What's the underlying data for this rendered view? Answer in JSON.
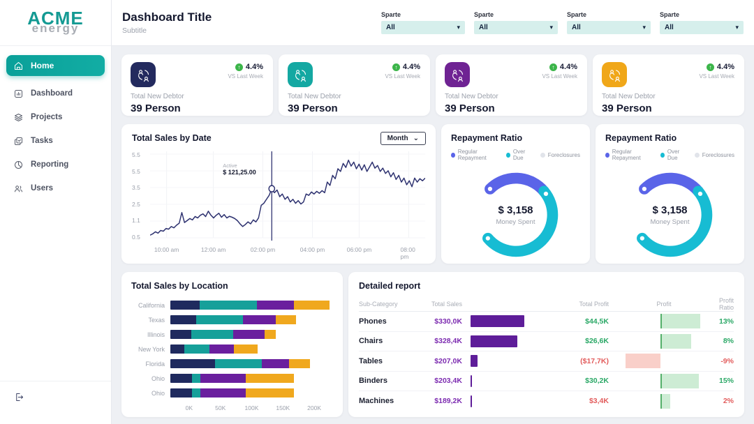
{
  "brand": {
    "primary": "ACME",
    "secondary": "energy"
  },
  "sidebar": {
    "items": [
      {
        "label": "Home",
        "active": true
      },
      {
        "label": "Dashboard",
        "active": false
      },
      {
        "label": "Projects",
        "active": false
      },
      {
        "label": "Tasks",
        "active": false
      },
      {
        "label": "Reporting",
        "active": false
      },
      {
        "label": "Users",
        "active": false
      }
    ]
  },
  "header": {
    "title": "Dashboard Title",
    "subtitle": "Subtitle",
    "filters": [
      {
        "label": "Sparte",
        "value": "All"
      },
      {
        "label": "Sparte",
        "value": "All"
      },
      {
        "label": "Sparte",
        "value": "All"
      },
      {
        "label": "Sparte",
        "value": "All"
      }
    ]
  },
  "kpi_cards": [
    {
      "icon_color": "#232a5e",
      "delta": "4.4%",
      "delta_note": "VS Last Week",
      "label": "Total New Debtor",
      "value": "39 Person"
    },
    {
      "icon_color": "#14a8a2",
      "delta": "4.4%",
      "delta_note": "VS Last Week",
      "label": "Total New Debtor",
      "value": "39 Person"
    },
    {
      "icon_color": "#6f2393",
      "delta": "4.4%",
      "delta_note": "VS Last Week",
      "label": "Total New Debtor",
      "value": "39 Person"
    },
    {
      "icon_color": "#f0a719",
      "delta": "4.4%",
      "delta_note": "VS Last Week",
      "label": "Total New Debtor",
      "value": "39 Person"
    }
  ],
  "chart_data": [
    {
      "type": "line",
      "title": "Total Sales by Date",
      "period_selector": "Month",
      "line_color": "#2e3270",
      "y_ticks": [
        "5.5",
        "5.5",
        "3.5",
        "2.5",
        "1.1",
        "0.5"
      ],
      "x_ticks": [
        "10:00 am",
        "12:00 am",
        "02:00 pm",
        "04:00 pm",
        "06:00 pm",
        "08:00 pm"
      ],
      "x_tick_pcts": [
        6,
        23,
        41,
        59,
        76,
        94
      ],
      "ylim": [
        0,
        6.2
      ],
      "points": [
        0.2,
        0.3,
        0.45,
        0.35,
        0.55,
        0.5,
        0.7,
        0.65,
        0.85,
        0.75,
        0.95,
        1.1,
        1.9,
        1.15,
        1.3,
        1.45,
        1.35,
        1.6,
        1.5,
        1.7,
        1.8,
        1.6,
        2.0,
        1.7,
        1.5,
        1.7,
        1.85,
        1.55,
        1.75,
        1.5,
        1.62,
        1.55,
        1.45,
        1.3,
        1.05,
        0.85,
        1.0,
        1.2,
        1.05,
        1.35,
        1.2,
        1.5,
        2.45,
        2.6,
        2.9,
        3.2,
        3.7,
        3.4,
        3.6,
        3.1,
        3.3,
        2.9,
        3.1,
        2.7,
        2.9,
        2.6,
        2.8,
        2.55,
        2.7,
        3.3,
        3.2,
        3.45,
        3.3,
        3.5,
        3.35,
        3.55,
        3.4,
        4.2,
        3.95,
        4.7,
        4.45,
        5.2,
        5.0,
        5.6,
        5.3,
        5.85,
        5.4,
        5.7,
        5.2,
        5.55,
        5.1,
        5.5,
        5.0,
        5.35,
        5.7,
        5.25,
        5.45,
        5.0,
        5.25,
        4.85,
        5.05,
        4.6,
        4.9,
        4.4,
        4.7,
        4.2,
        4.5,
        4.0,
        4.3,
        3.85,
        4.5,
        4.2,
        4.45,
        4.3,
        4.5
      ],
      "cursor": {
        "index": 46,
        "label": "Active",
        "value": "$ 121,25.00"
      }
    },
    {
      "type": "pie",
      "title": "Repayment Ratio",
      "legend": [
        {
          "label": "Regular Repayment",
          "color": "#5a64e8"
        },
        {
          "label": "Over Due",
          "color": "#17bcd3"
        },
        {
          "label": "Foreclosures",
          "color": "#e1e4ea"
        }
      ],
      "slices": [
        {
          "label": "Regular Repayment",
          "pct": 26
        },
        {
          "label": "Over Due",
          "pct": 50
        },
        {
          "label": "Foreclosures",
          "pct": 24
        }
      ],
      "arcs": [
        {
          "color": "#5a64e8",
          "start": 315,
          "sweep": 95
        },
        {
          "color": "#17bcd3",
          "start": 50,
          "sweep": 180
        }
      ],
      "dot_angles": [
        315,
        55,
        230
      ],
      "center_value": "$ 3,158",
      "center_label": "Money Spent"
    },
    {
      "type": "bar",
      "orientation": "horizontal",
      "stacked": true,
      "title": "Total Sales by Location",
      "categories": [
        "California",
        "Texas",
        "Illinois",
        "New York",
        "Florida",
        "Ohio",
        "Ohio"
      ],
      "series": [
        {
          "name": "segment-navy",
          "color": "#1f2a5e",
          "values": [
            47,
            41,
            33,
            22,
            71,
            35,
            35
          ]
        },
        {
          "name": "segment-teal",
          "color": "#16a09a",
          "values": [
            91,
            75,
            68,
            40,
            75,
            13,
            13
          ]
        },
        {
          "name": "segment-purple",
          "color": "#6a1f9e",
          "values": [
            59,
            52,
            50,
            40,
            44,
            73,
            73
          ]
        },
        {
          "name": "segment-amber",
          "color": "#f0a81e",
          "values": [
            58,
            33,
            18,
            38,
            33,
            77,
            77
          ]
        }
      ],
      "x_ticks": [
        {
          "label": "0K",
          "value": 0
        },
        {
          "label": "50K",
          "value": 50
        },
        {
          "label": "100K",
          "value": 100
        },
        {
          "label": "150K",
          "value": 150
        },
        {
          "label": "200K",
          "value": 200
        }
      ],
      "xlim": [
        -30,
        230
      ]
    },
    {
      "type": "table",
      "title": "Detailed report",
      "columns": [
        "Sub-Category",
        "Total Sales",
        "Total Profit",
        "Profit",
        "Profit Ratio"
      ],
      "rows": [
        {
          "name": "Phones",
          "total_sales": "$330,0K",
          "sales_bar_pct": 88,
          "total_profit": "$44,5K",
          "profit_negative": false,
          "profit_bar_pct": 45,
          "profit_ratio": "13%",
          "ratio_negative": false
        },
        {
          "name": "Chairs",
          "total_sales": "$328,4K",
          "sales_bar_pct": 76,
          "total_profit": "$26,6K",
          "profit_negative": false,
          "profit_bar_pct": 35,
          "profit_ratio": "8%",
          "ratio_negative": false
        },
        {
          "name": "Tables",
          "total_sales": "$207,0K",
          "sales_bar_pct": 11,
          "total_profit": "($17,7K)",
          "profit_negative": true,
          "profit_bar_pct": -40,
          "profit_ratio": "-9%",
          "ratio_negative": true
        },
        {
          "name": "Binders",
          "total_sales": "$203,4K",
          "sales_bar_pct": 2,
          "total_profit": "$30,2K",
          "profit_negative": false,
          "profit_bar_pct": 43,
          "profit_ratio": "15%",
          "ratio_negative": false
        },
        {
          "name": "Machines",
          "total_sales": "$189,2K",
          "sales_bar_pct": 2,
          "total_profit": "$3,4K",
          "profit_negative": true,
          "profit_bar_pct": 11,
          "profit_ratio": "2%",
          "ratio_negative": true
        }
      ]
    }
  ],
  "colors": {
    "accent_teal": "#0aa099",
    "positive_green": "#2aa866",
    "negative_red": "#e25c5c",
    "profit_bar_green": "#cdecd4",
    "profit_bar_green_edge": "#54b06a",
    "profit_bar_red": "#f9cfc9",
    "sales_bar_purple": "#5e1d99"
  }
}
